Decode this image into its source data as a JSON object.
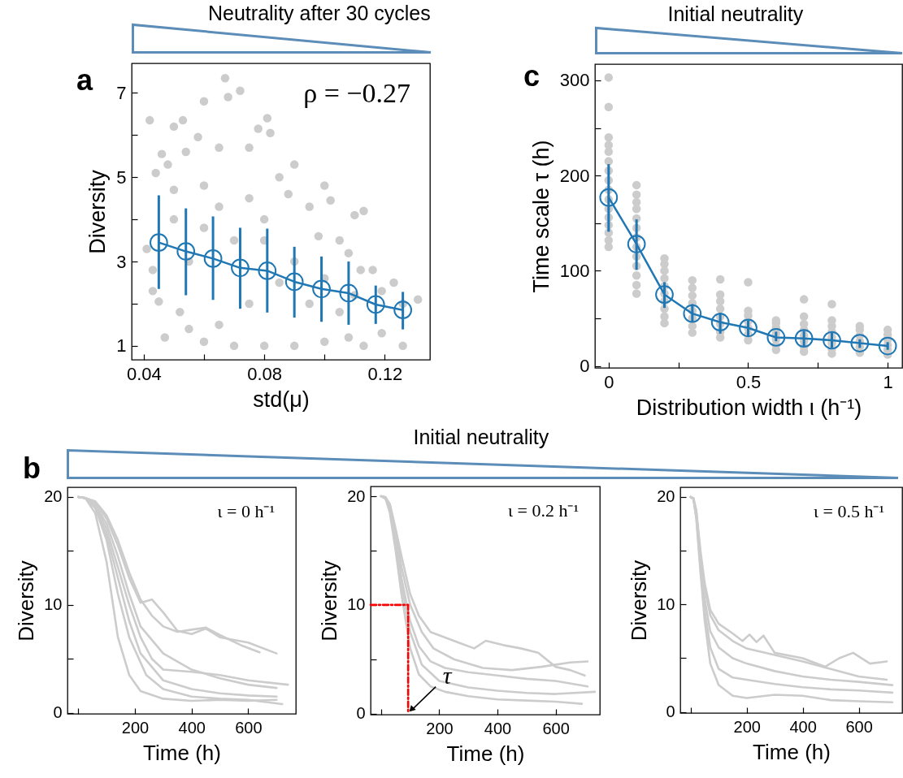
{
  "chart_data": [
    {
      "type": "scatter",
      "title": "Neutrality after 30 cycles",
      "xlabel": "std(μ)",
      "ylabel": "Diversity",
      "xlim": [
        0.036,
        0.135
      ],
      "ylim": [
        0.67,
        7.7
      ],
      "xticks": [
        0.04,
        {
          "value": 0.06,
          "label": null
        },
        0.08,
        {
          "value": 0.1,
          "label": null
        },
        0.12
      ],
      "yticks": [
        1,
        {
          "value": 2,
          "label": null
        },
        3,
        {
          "value": 4,
          "label": null
        },
        5,
        {
          "value": 6,
          "label": null
        },
        7
      ],
      "marker": "circle",
      "annotations": [
        "a",
        "ρ = −0.27"
      ],
      "series": [
        {
          "color": "#cccccc",
          "x": [
            0.042,
            0.067,
            0.068,
            0.072,
            0.06,
            0.081,
            0.053,
            0.05,
            0.078,
            0.082,
            0.058,
            0.046,
            0.054,
            0.065,
            0.075,
            0.09,
            0.1,
            0.102,
            0.11,
            0.113,
            0.044,
            0.048,
            0.05,
            0.06,
            0.085,
            0.088,
            0.095,
            0.098,
            0.105,
            0.108,
            0.112,
            0.116,
            0.119,
            0.123,
            0.131,
            0.126,
            0.119,
            0.126,
            0.113,
            0.108,
            0.1,
            0.09,
            0.08,
            0.07,
            0.06,
            0.047,
            0.045,
            0.043,
            0.041,
            0.043,
            0.052,
            0.055,
            0.065,
            0.075,
            0.085,
            0.095,
            0.07,
            0.08,
            0.06,
            0.09,
            0.065,
            0.075,
            0.08,
            0.055,
            0.1,
            0.105,
            0.11,
            0.05
          ],
          "values": [
            6.35,
            7.35,
            6.9,
            7.05,
            6.8,
            6.4,
            6.35,
            6.2,
            6.15,
            6.05,
            5.95,
            5.55,
            5.6,
            5.7,
            5.7,
            5.3,
            4.8,
            4.45,
            4.1,
            4.2,
            5.1,
            5.3,
            4.7,
            4.8,
            5.0,
            4.6,
            4.3,
            3.6,
            3.5,
            3.2,
            2.8,
            2.8,
            2.3,
            2.5,
            2.1,
            2.0,
            1.3,
            1.0,
            1.0,
            1.2,
            1.1,
            1.0,
            1.0,
            1.0,
            1.1,
            1.2,
            2.05,
            2.3,
            3.3,
            2.8,
            1.8,
            1.4,
            1.5,
            2.0,
            2.5,
            2.0,
            3.5,
            3.5,
            3.8,
            3.0,
            4.3,
            4.5,
            4.0,
            3.0,
            2.6,
            1.8,
            2.2,
            4.0
          ]
        },
        {
          "type": "line",
          "color": "#1f77b4",
          "x": [
            0.045,
            0.054,
            0.063,
            0.072,
            0.081,
            0.09,
            0.099,
            0.108,
            0.117,
            0.126
          ],
          "values": [
            3.45,
            3.24,
            3.07,
            2.85,
            2.78,
            2.52,
            2.35,
            2.25,
            1.98,
            1.85
          ],
          "errors": [
            [
              2.35,
              4.57
            ],
            [
              2.2,
              4.26
            ],
            [
              2.09,
              4.07
            ],
            [
              1.88,
              3.8
            ],
            [
              1.79,
              3.78
            ],
            [
              1.67,
              3.35
            ],
            [
              1.57,
              3.12
            ],
            [
              1.5,
              3.0
            ],
            [
              1.52,
              2.43
            ],
            [
              1.39,
              2.28
            ]
          ]
        }
      ]
    },
    {
      "type": "scatter",
      "title": "Initial neutrality",
      "xlabel": "Distribution width ι (h⁻¹)",
      "ylabel": "Time scale τ (h)",
      "xlim": [
        -0.049,
        1.052
      ],
      "ylim": [
        -2,
        317
      ],
      "xticks": [
        0,
        {
          "value": 0.25,
          "label": null
        },
        0.5,
        {
          "value": 0.75,
          "label": null
        },
        1
      ],
      "yticks": [
        0,
        {
          "value": 50,
          "label": null
        },
        100,
        {
          "value": 150,
          "label": null
        },
        200,
        {
          "value": 250,
          "label": null
        },
        300
      ],
      "marker": "circle",
      "annotations": [
        "c"
      ],
      "series": [
        {
          "color": "#cccccc",
          "x": [
            0,
            0,
            0,
            0,
            0,
            0,
            0,
            0,
            0,
            0,
            0,
            0,
            0,
            0,
            0,
            0,
            0.1,
            0.1,
            0.1,
            0.1,
            0.1,
            0.1,
            0.1,
            0.1,
            0.1,
            0.1,
            0.1,
            0.1,
            0.1,
            0.2,
            0.2,
            0.2,
            0.2,
            0.2,
            0.2,
            0.2,
            0.2,
            0.2,
            0.2,
            0.3,
            0.3,
            0.3,
            0.3,
            0.3,
            0.3,
            0.3,
            0.3,
            0.4,
            0.4,
            0.4,
            0.4,
            0.4,
            0.4,
            0.4,
            0.4,
            0.5,
            0.5,
            0.5,
            0.5,
            0.5,
            0.5,
            0.5,
            0.6,
            0.6,
            0.6,
            0.6,
            0.6,
            0.6,
            0.6,
            0.7,
            0.7,
            0.7,
            0.7,
            0.7,
            0.7,
            0.7,
            0.7,
            0.8,
            0.8,
            0.8,
            0.8,
            0.8,
            0.8,
            0.8,
            0.8,
            0.9,
            0.9,
            0.9,
            0.9,
            0.9,
            0.9,
            1,
            1,
            1,
            1,
            1,
            1
          ],
          "values": [
            125,
            132,
            140,
            148,
            156,
            165,
            175,
            185,
            195,
            205,
            215,
            225,
            232,
            240,
            272,
            303,
            76,
            85,
            95,
            105,
            115,
            125,
            135,
            145,
            155,
            165,
            172,
            180,
            190,
            45,
            52,
            60,
            68,
            76,
            84,
            92,
            100,
            107,
            113,
            35,
            42,
            50,
            58,
            66,
            74,
            82,
            90,
            30,
            36,
            44,
            52,
            60,
            68,
            75,
            91,
            27,
            33,
            40,
            47,
            53,
            58,
            88,
            17,
            22,
            28,
            34,
            40,
            45,
            48,
            15,
            20,
            26,
            32,
            38,
            44,
            52,
            70,
            13,
            18,
            24,
            30,
            36,
            42,
            48,
            65,
            14,
            20,
            26,
            32,
            38,
            42,
            12,
            17,
            22,
            28,
            33,
            38
          ]
        },
        {
          "type": "line",
          "color": "#1f77b4",
          "x": [
            0,
            0.1,
            0.2,
            0.3,
            0.4,
            0.5,
            0.6,
            0.7,
            0.8,
            0.9,
            1
          ],
          "values": [
            177,
            128,
            75,
            55,
            46,
            40,
            30,
            29,
            27,
            24,
            21
          ],
          "errors": [
            [
              141,
              212
            ],
            [
              101,
              154
            ],
            [
              61,
              88
            ],
            [
              46,
              65
            ],
            [
              34,
              56
            ],
            [
              31,
              48
            ],
            [
              26,
              36
            ],
            [
              20,
              37
            ],
            [
              19,
              35
            ],
            [
              19,
              28
            ],
            [
              17,
              25
            ]
          ]
        }
      ]
    },
    {
      "type": "line",
      "xlabel": "Time (h)",
      "ylabel": "Diversity",
      "xlim": [
        -38,
        768
      ],
      "ylim": [
        -0.1,
        20.9
      ],
      "xticks": [
        {
          "value": 0,
          "label": null
        },
        200,
        400,
        600
      ],
      "yticks": [
        0,
        {
          "value": 5,
          "label": null
        },
        10,
        {
          "value": 15,
          "label": null
        },
        20
      ],
      "annotations": [
        "b",
        "ι = 0 h⁻¹"
      ],
      "series": [
        {
          "color": "#cccccc",
          "x": [
            0,
            25,
            60,
            100,
            140,
            180,
            220,
            300,
            400,
            500,
            600,
            700
          ],
          "values": [
            20,
            19.9,
            18.5,
            14,
            7,
            3.5,
            2.0,
            1.3,
            1.1,
            1.2,
            1.1,
            1.2
          ]
        },
        {
          "color": "#cccccc",
          "x": [
            0,
            25,
            60,
            100,
            140,
            180,
            220,
            300,
            400,
            500,
            600,
            700
          ],
          "values": [
            20,
            19.9,
            19,
            16.5,
            12.5,
            8.5,
            5.5,
            3.0,
            2.2,
            1.8,
            1.6,
            1.5
          ]
        },
        {
          "color": "#cccccc",
          "x": [
            0,
            25,
            60,
            100,
            140,
            180,
            220,
            300,
            400,
            500,
            600,
            700
          ],
          "values": [
            20,
            19.9,
            19.3,
            17.5,
            14.5,
            11,
            8,
            5.5,
            4,
            3.2,
            2.6,
            2.3
          ]
        },
        {
          "color": "#cccccc",
          "x": [
            0,
            25,
            60,
            100,
            140,
            180,
            220,
            260,
            300,
            350,
            400,
            450,
            500,
            600,
            700
          ],
          "values": [
            20,
            19.9,
            19.5,
            18,
            15.5,
            12.5,
            10.2,
            10.5,
            9.3,
            7.6,
            7.3,
            7.8,
            7.0,
            6.5,
            5.5
          ]
        },
        {
          "color": "#cccccc",
          "x": [
            0,
            25,
            60,
            100,
            140,
            180,
            220,
            260,
            300,
            350,
            400,
            450,
            500,
            580,
            640
          ],
          "values": [
            20,
            19.9,
            19.6,
            18.3,
            16,
            13,
            10.5,
            9,
            8,
            7.5,
            7.7,
            7.9,
            7.2,
            6.2,
            5.6
          ]
        },
        {
          "color": "#cccccc",
          "x": [
            0,
            25,
            60,
            100,
            140,
            180,
            220,
            260,
            300,
            400,
            500,
            600,
            740
          ],
          "values": [
            20,
            19.9,
            19.2,
            17,
            13.5,
            10,
            7,
            5,
            4,
            3.8,
            3.5,
            3,
            2.6
          ]
        },
        {
          "color": "#cccccc",
          "x": [
            0,
            25,
            60,
            100,
            140,
            180,
            240,
            300,
            400,
            500,
            600,
            720
          ],
          "values": [
            20,
            19.9,
            19,
            16,
            11,
            7,
            3.5,
            2.2,
            1.5,
            1.3,
            1.2,
            0.8
          ]
        }
      ]
    },
    {
      "type": "line",
      "title": "Initial neutrality",
      "xlabel": "Time (h)",
      "ylabel": "Diversity",
      "xlim": [
        -36,
        752
      ],
      "ylim": [
        -0.1,
        20.9
      ],
      "xticks": [
        {
          "value": 0,
          "label": null
        },
        200,
        400,
        600
      ],
      "yticks": [
        0,
        {
          "value": 5,
          "label": null
        },
        10,
        {
          "value": 15,
          "label": null
        },
        20
      ],
      "annotations": [
        "ι = 0.2 h⁻¹",
        {
          "text": "τ",
          "x": 93,
          "y": 0
        }
      ],
      "series": [
        {
          "color": "#cccccc",
          "x": [
            0,
            15,
            30,
            50,
            70,
            100,
            130,
            170,
            220,
            300,
            400,
            500,
            600,
            690
          ],
          "values": [
            20,
            19.8,
            18.5,
            15,
            11,
            6,
            3.6,
            2.5,
            2.0,
            1.6,
            1.3,
            1.2,
            1.1,
            0.9
          ]
        },
        {
          "color": "#cccccc",
          "x": [
            0,
            15,
            30,
            50,
            70,
            100,
            130,
            170,
            220,
            270,
            320,
            360,
            420,
            480,
            540,
            600,
            650,
            700
          ],
          "values": [
            20,
            19.9,
            19.3,
            17,
            14.5,
            11,
            9,
            7.5,
            7,
            6.5,
            6,
            6.7,
            6.3,
            6,
            5.6,
            4.3,
            4,
            3.5
          ]
        },
        {
          "color": "#cccccc",
          "x": [
            0,
            15,
            30,
            50,
            70,
            100,
            130,
            170,
            220,
            300,
            400,
            500,
            600,
            710
          ],
          "values": [
            20,
            19.9,
            19,
            16,
            12.5,
            8.5,
            6.2,
            4.8,
            4.2,
            3.8,
            3.5,
            3.2,
            3,
            2.5
          ]
        },
        {
          "color": "#cccccc",
          "x": [
            0,
            15,
            30,
            50,
            70,
            100,
            140,
            180,
            250,
            350,
            450,
            550,
            650,
            710
          ],
          "values": [
            20,
            19.9,
            19.2,
            16.8,
            13.5,
            10,
            7.5,
            6,
            5,
            4.2,
            4,
            4.3,
            4.7,
            4.8
          ]
        },
        {
          "color": "#cccccc",
          "x": [
            0,
            15,
            30,
            50,
            70,
            100,
            140,
            200,
            300,
            400,
            500,
            600,
            735
          ],
          "values": [
            20,
            19.8,
            18.8,
            15.5,
            12,
            7.5,
            4.5,
            3,
            2.4,
            2.1,
            1.9,
            1.8,
            2.0
          ]
        },
        {
          "color": "#ff0000",
          "line_style": "dashed",
          "x": [
            -36,
            93,
            93
          ],
          "values": [
            10,
            10,
            0
          ]
        }
      ]
    },
    {
      "type": "line",
      "xlabel": "Time (h)",
      "ylabel": "Diversity",
      "xlim": [
        -37,
        755
      ],
      "ylim": [
        -0.1,
        20.9
      ],
      "xticks": [
        {
          "value": 0,
          "label": null
        },
        200,
        400,
        600
      ],
      "yticks": [
        0,
        {
          "value": 5,
          "label": null
        },
        10,
        {
          "value": 15,
          "label": null
        },
        20
      ],
      "annotations": [
        "ι = 0.5 h⁻¹"
      ],
      "series": [
        {
          "color": "#cccccc",
          "x": [
            0,
            10,
            20,
            35,
            50,
            70,
            100,
            150,
            200,
            300,
            400,
            500,
            600,
            720
          ],
          "values": [
            20,
            19.8,
            18,
            13,
            8.5,
            4.5,
            2.5,
            1.5,
            1.3,
            1.6,
            1.5,
            1.1,
            1.0,
            0.9
          ]
        },
        {
          "color": "#cccccc",
          "x": [
            0,
            10,
            20,
            35,
            50,
            70,
            100,
            150,
            185,
            210,
            235,
            260,
            300,
            400,
            480,
            530,
            580,
            640,
            700
          ],
          "values": [
            20,
            19.9,
            18.8,
            15,
            12,
            9.5,
            8.2,
            7.3,
            6.6,
            7.2,
            6.5,
            7.1,
            5.5,
            5,
            4.2,
            5.0,
            5.5,
            4.5,
            4.7
          ]
        },
        {
          "color": "#cccccc",
          "x": [
            0,
            10,
            20,
            35,
            50,
            70,
            100,
            150,
            200,
            300,
            400,
            500,
            600,
            720
          ],
          "values": [
            20,
            19.8,
            18.5,
            14,
            10.5,
            7.5,
            6,
            5,
            4.5,
            3.8,
            3.3,
            3,
            2.8,
            2.5
          ]
        },
        {
          "color": "#cccccc",
          "x": [
            0,
            10,
            20,
            35,
            50,
            70,
            100,
            150,
            200,
            300,
            400,
            500,
            600,
            720
          ],
          "values": [
            20,
            19.8,
            18.2,
            13.5,
            9.5,
            6,
            4,
            3.2,
            3,
            2.6,
            2.3,
            2.1,
            2,
            1.8
          ]
        },
        {
          "color": "#cccccc",
          "x": [
            0,
            10,
            20,
            35,
            50,
            70,
            100,
            150,
            200,
            300,
            400,
            500,
            600,
            700
          ],
          "values": [
            20,
            19.8,
            18.6,
            14.5,
            11.5,
            9,
            7.6,
            6.6,
            5.9,
            5.3,
            4.7,
            4,
            3.3,
            3
          ]
        }
      ]
    }
  ]
}
